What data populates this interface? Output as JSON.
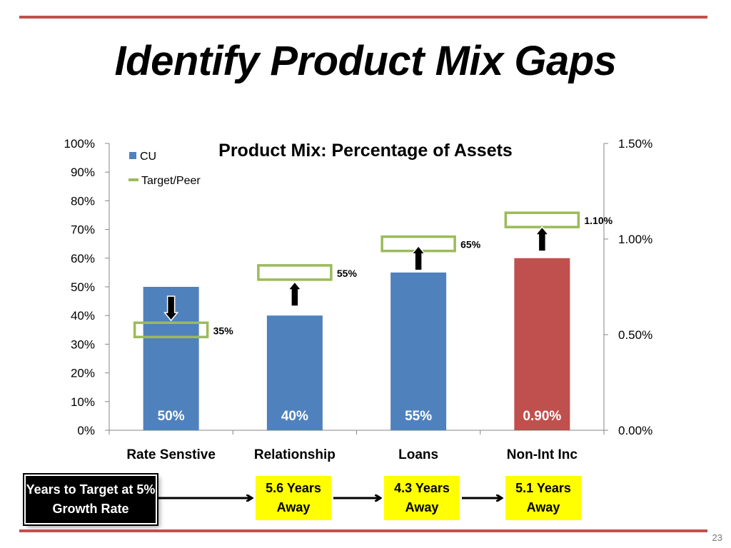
{
  "slide": {
    "title": "Identify Product Mix Gaps",
    "number": "23",
    "accent_color": "#c0504d"
  },
  "chart_data": {
    "type": "bar",
    "title": "Product Mix: Percentage of Assets",
    "categories": [
      "Rate Senstive",
      "Relationship",
      "Loans",
      "Non-Int Inc"
    ],
    "series": [
      {
        "name": "CU",
        "values": [
          50,
          40,
          55,
          0.9
        ],
        "axis": [
          "left",
          "left",
          "left",
          "right"
        ],
        "colors": [
          "#4f81bd",
          "#4f81bd",
          "#4f81bd",
          "#c0504d"
        ],
        "data_labels": [
          "50%",
          "40%",
          "55%",
          "0.90%"
        ]
      },
      {
        "name": "Target/Peer",
        "values": [
          35,
          55,
          65,
          1.1
        ],
        "axis": [
          "left",
          "left",
          "left",
          "right"
        ],
        "color": "#9bbb59",
        "data_labels": [
          "35%",
          "55%",
          "65%",
          "1.10%"
        ]
      }
    ],
    "gap_direction": [
      "down",
      "up",
      "up",
      "up"
    ],
    "left_axis": {
      "ylim": [
        0,
        100
      ],
      "ticks": [
        "0%",
        "10%",
        "20%",
        "30%",
        "40%",
        "50%",
        "60%",
        "70%",
        "80%",
        "90%",
        "100%"
      ]
    },
    "right_axis": {
      "ylim": [
        0,
        1.5
      ],
      "ticks": [
        "0.00%",
        "0.50%",
        "1.00%",
        "1.50%"
      ]
    },
    "legend_position": "top-left",
    "grid": false
  },
  "timeline": {
    "label": "Years to Target at 5% Growth Rate",
    "steps": [
      "5.6 Years Away",
      "4.3 Years Away",
      "5.1 Years Away"
    ]
  }
}
